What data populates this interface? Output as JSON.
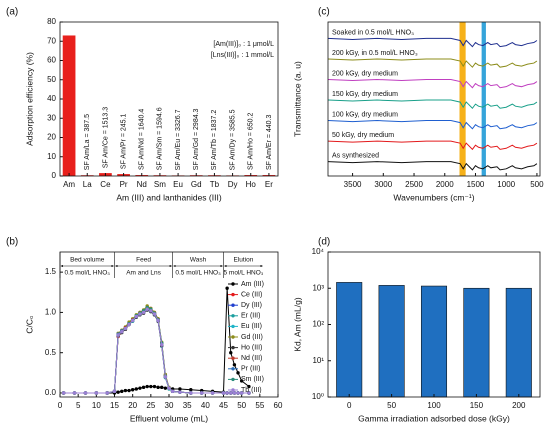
{
  "chart_data": [
    {
      "type": "bar",
      "panel_label": "(a)",
      "y_label": "Adsorption efficiency (%)",
      "x_label": "Am (III) and lanthanides (III)",
      "categories": [
        "Am",
        "La",
        "Ce",
        "Pr",
        "Nd",
        "Sm",
        "Eu",
        "Gd",
        "Tb",
        "Dy",
        "Ho",
        "Er"
      ],
      "values": [
        73,
        0.4,
        1.5,
        1,
        0.5,
        0.4,
        0.3,
        0.4,
        0.4,
        0.3,
        0.5,
        0.5
      ],
      "bar_labels": [
        null,
        "SF Am/La = 387.5",
        "SF Am/Ce = 1513.3",
        "SF Am/Pr = 245.1",
        "SF Am/Nd = 1640.4",
        "SF Am/Sm = 1594.6",
        "SF Am/Eu = 3326.7",
        "SF Am/Gd = 2984.3",
        "SF Am/Tb = 1837.2",
        "SF Am/Dy = 3585.5",
        "SF Am/Ho = 650.2",
        "SF Am/Er = 440.3"
      ],
      "notes": [
        "[Am(III)]₀ : 1 μmol/L",
        "[Lns(III)]₀ : 1 mmol/L"
      ],
      "color": "#e8201c",
      "ylim": [
        0,
        80
      ],
      "yticks": [
        0,
        10,
        20,
        30,
        40,
        50,
        60,
        70,
        80
      ]
    },
    {
      "type": "line",
      "panel_label": "(c)",
      "y_label": "Transmittance (a. u)",
      "x_label": "Wavenumbers (cm⁻¹)",
      "x": [
        3900,
        3500,
        3100,
        2700,
        2300,
        1900,
        1750,
        1700,
        1650,
        1550,
        1500,
        1450,
        1380,
        1300,
        1250,
        1150,
        1100,
        1000,
        900,
        850,
        750,
        650,
        550,
        500
      ],
      "series": [
        {
          "name": "As synthesized",
          "color": "#111111",
          "values": [
            1,
            0.95,
            1,
            0.95,
            1,
            1,
            0.9,
            0.65,
            0.9,
            0.6,
            0.8,
            0.7,
            0.65,
            0.8,
            0.7,
            0.75,
            0.6,
            0.65,
            0.8,
            0.7,
            0.65,
            0.75,
            0.8,
            0.9
          ]
        },
        {
          "name": "50 kGy, dry medium",
          "color": "#e31a1c",
          "values": [
            2,
            1.95,
            2,
            1.95,
            2,
            2,
            1.9,
            1.65,
            1.9,
            1.6,
            1.8,
            1.7,
            1.65,
            1.8,
            1.7,
            1.75,
            1.6,
            1.65,
            1.8,
            1.7,
            1.65,
            1.75,
            1.8,
            1.9
          ]
        },
        {
          "name": "100 kGy, dry medium",
          "color": "#1f5fd0",
          "values": [
            3,
            2.95,
            3,
            2.95,
            3,
            3,
            2.9,
            2.65,
            2.9,
            2.6,
            2.8,
            2.7,
            2.65,
            2.8,
            2.7,
            2.75,
            2.6,
            2.65,
            2.8,
            2.7,
            2.65,
            2.75,
            2.8,
            2.9
          ]
        },
        {
          "name": "150 kGy, dry medium",
          "color": "#1aa08a",
          "values": [
            4,
            3.95,
            4,
            3.95,
            4,
            4,
            3.9,
            3.65,
            3.9,
            3.6,
            3.8,
            3.7,
            3.65,
            3.8,
            3.7,
            3.75,
            3.6,
            3.65,
            3.8,
            3.7,
            3.65,
            3.75,
            3.8,
            3.9
          ]
        },
        {
          "name": "200 kGy, dry medium",
          "color": "#c03fc0",
          "values": [
            5,
            4.95,
            5,
            4.95,
            5,
            5,
            4.9,
            4.65,
            4.9,
            4.6,
            4.8,
            4.7,
            4.65,
            4.8,
            4.7,
            4.75,
            4.6,
            4.65,
            4.8,
            4.7,
            4.65,
            4.75,
            4.8,
            4.9
          ]
        },
        {
          "name": "200 kGy, in 0.5 mol/L HNO₃",
          "color": "#8c8c1a",
          "values": [
            6,
            5.95,
            6,
            5.95,
            6,
            6,
            5.9,
            5.65,
            5.9,
            5.6,
            5.8,
            5.7,
            5.65,
            5.8,
            5.7,
            5.75,
            5.6,
            5.65,
            5.8,
            5.7,
            5.65,
            5.75,
            5.8,
            5.9
          ]
        },
        {
          "name": "Soaked in 0.5 mol/L HNO₃",
          "color": "#1f2f8f",
          "values": [
            7,
            6.95,
            7,
            6.95,
            7,
            7,
            6.9,
            6.65,
            6.9,
            6.6,
            6.8,
            6.7,
            6.65,
            6.8,
            6.7,
            6.75,
            6.6,
            6.65,
            6.8,
            6.7,
            6.65,
            6.75,
            6.8,
            6.9
          ]
        }
      ],
      "bands": [
        {
          "range": [
            1760,
            1660
          ],
          "color": "#f5a800"
        },
        {
          "range": [
            1400,
            1330
          ],
          "color": "#1f9ad6"
        }
      ],
      "series_labels": "inline",
      "xlim": [
        3900,
        450
      ],
      "xticks": [
        3500,
        3000,
        2500,
        2000,
        1500,
        1000,
        500
      ],
      "ylim": [
        0.3,
        7.8
      ]
    },
    {
      "type": "line",
      "panel_label": "(b)",
      "markers": true,
      "y_label": "C/C₀",
      "x_label": "Effluent volume (mL)",
      "x": [
        1,
        4,
        7,
        10,
        13,
        15,
        16,
        17,
        18,
        19,
        20,
        21,
        22,
        23,
        24,
        25,
        26,
        27,
        28,
        29,
        30,
        31,
        33,
        36,
        39,
        42,
        45,
        46,
        47,
        48,
        49,
        50,
        52
      ],
      "series": [
        {
          "name": "Am (III)",
          "color": "#000000",
          "values": [
            0,
            0,
            0,
            0,
            0,
            0,
            0.01,
            0.02,
            0.03,
            0.03,
            0.04,
            0.05,
            0.06,
            0.07,
            0.08,
            0.08,
            0.08,
            0.07,
            0.07,
            0.06,
            0.06,
            0.05,
            0.05,
            0.04,
            0.03,
            0.02,
            0.01,
            1.3,
            0.5,
            0.35,
            0.25,
            0.15,
            0.08
          ]
        },
        {
          "name": "Ce (III)",
          "color": "#e41a1c",
          "values": [
            0,
            0,
            0,
            0,
            0,
            0.02,
            0.7,
            0.75,
            0.79,
            0.85,
            0.9,
            0.96,
            1.0,
            1.02,
            1.07,
            1.05,
            1.0,
            0.92,
            0.62,
            0.22,
            0.06,
            0.02,
            0.01,
            0,
            0,
            0,
            0,
            0,
            0,
            0,
            0,
            0,
            0
          ]
        },
        {
          "name": "Dy (III)",
          "color": "#1f3fcf",
          "values": [
            0,
            0,
            0,
            0,
            0,
            0.02,
            0.72,
            0.76,
            0.8,
            0.86,
            0.9,
            0.95,
            0.98,
            1.0,
            1.04,
            1.02,
            0.98,
            0.9,
            0.6,
            0.2,
            0.06,
            0.02,
            0.01,
            0,
            0,
            0,
            0,
            0,
            0,
            0,
            0,
            0,
            0
          ]
        },
        {
          "name": "Er (III)",
          "color": "#1a9e9e",
          "values": [
            0,
            0,
            0,
            0,
            0,
            0.02,
            0.71,
            0.75,
            0.8,
            0.85,
            0.89,
            0.94,
            0.97,
            1.0,
            1.03,
            1.01,
            0.97,
            0.89,
            0.58,
            0.19,
            0.05,
            0.02,
            0.01,
            0,
            0,
            0,
            0,
            0,
            0,
            0,
            0,
            0,
            0
          ]
        },
        {
          "name": "Eu (III)",
          "color": "#1fb4c8",
          "values": [
            0,
            0,
            0,
            0,
            0,
            0.02,
            0.73,
            0.77,
            0.81,
            0.87,
            0.91,
            0.96,
            0.99,
            1.02,
            1.06,
            1.03,
            0.99,
            0.91,
            0.61,
            0.21,
            0.06,
            0.02,
            0.01,
            0,
            0,
            0,
            0,
            0,
            0,
            0,
            0,
            0,
            0
          ]
        },
        {
          "name": "Gd (III)",
          "color": "#8c8c1a",
          "values": [
            0,
            0,
            0,
            0,
            0,
            0.02,
            0.74,
            0.78,
            0.82,
            0.88,
            0.92,
            0.97,
            1.0,
            1.03,
            1.08,
            1.05,
            1.0,
            0.92,
            0.63,
            0.23,
            0.07,
            0.02,
            0.01,
            0,
            0,
            0,
            0,
            0,
            0,
            0,
            0,
            0,
            0
          ]
        },
        {
          "name": "Ho (III)",
          "color": "#333333",
          "values": [
            0,
            0,
            0,
            0,
            0,
            0.02,
            0.71,
            0.75,
            0.79,
            0.85,
            0.9,
            0.94,
            0.97,
            0.99,
            1.03,
            1.01,
            0.97,
            0.89,
            0.59,
            0.2,
            0.06,
            0.02,
            0.01,
            0,
            0,
            0,
            0,
            0,
            0,
            0,
            0,
            0,
            0
          ]
        },
        {
          "name": "Nd (III)",
          "color": "#c0392b",
          "values": [
            0,
            0,
            0,
            0,
            0,
            0.02,
            0.72,
            0.76,
            0.81,
            0.86,
            0.91,
            0.95,
            0.99,
            1.01,
            1.05,
            1.03,
            0.99,
            0.9,
            0.6,
            0.21,
            0.06,
            0.02,
            0.01,
            0,
            0,
            0,
            0,
            0,
            0,
            0,
            0,
            0,
            0
          ]
        },
        {
          "name": "Pr (III)",
          "color": "#2c6fbb",
          "values": [
            0,
            0,
            0,
            0,
            0,
            0.02,
            0.73,
            0.77,
            0.8,
            0.86,
            0.9,
            0.95,
            0.98,
            1.01,
            1.05,
            1.02,
            0.98,
            0.9,
            0.61,
            0.2,
            0.06,
            0.02,
            0.01,
            0,
            0,
            0,
            0,
            0,
            0,
            0,
            0,
            0,
            0
          ]
        },
        {
          "name": "Sm (III)",
          "color": "#2a8c7a",
          "values": [
            0,
            0,
            0,
            0,
            0,
            0.02,
            0.72,
            0.76,
            0.8,
            0.86,
            0.9,
            0.96,
            0.99,
            1.02,
            1.06,
            1.04,
            0.99,
            0.91,
            0.62,
            0.21,
            0.06,
            0.02,
            0.01,
            0,
            0,
            0,
            0,
            0,
            0,
            0,
            0,
            0,
            0
          ]
        },
        {
          "name": "Tb (III)",
          "color": "#9b7fd4",
          "values": [
            0,
            0,
            0,
            0,
            0,
            0.02,
            0.72,
            0.76,
            0.8,
            0.85,
            0.9,
            0.95,
            0.98,
            1.0,
            1.04,
            1.02,
            0.98,
            0.9,
            0.6,
            0.2,
            0.06,
            0.02,
            0.01,
            0,
            0,
            0,
            0,
            0,
            0,
            0,
            0,
            0,
            0
          ]
        }
      ],
      "stages": [
        {
          "name": "Bed volume",
          "note": "0.5 mol/L HNO₃",
          "range": [
            0,
            15
          ]
        },
        {
          "name": "Feed",
          "note": "Am and Lns",
          "range": [
            15,
            31
          ]
        },
        {
          "name": "Wash",
          "note": "0.5 mol/L HNO₃",
          "range": [
            31,
            45
          ]
        },
        {
          "name": "Elution",
          "note": "5 mol/L HNO₃",
          "range": [
            45,
            56
          ]
        }
      ],
      "legend": "right",
      "xlim": [
        0,
        60
      ],
      "xticks": [
        0,
        5,
        10,
        15,
        20,
        25,
        30,
        35,
        40,
        45,
        50,
        55,
        60
      ],
      "ylim": [
        -0.05,
        1.75
      ],
      "yticks": [
        {
          "value": 0,
          "label": "0.0"
        },
        0.5,
        {
          "value": 1,
          "label": "1.0"
        },
        1.5
      ]
    },
    {
      "type": "bar",
      "panel_label": "(d)",
      "y_label": "Kd, Am (mL/g)",
      "x_label": "Gamma irradiation adsorbed dose (kGy)",
      "categories": [
        "0",
        "50",
        "100",
        "150",
        "200"
      ],
      "values": [
        1450,
        1200,
        1150,
        1000,
        1000
      ],
      "color": "#1f6fc0",
      "log_y": true,
      "ylim": [
        1,
        10000
      ],
      "yticks": [
        {
          "value": 1,
          "label": "10⁰"
        },
        {
          "value": 10,
          "label": "10¹"
        },
        {
          "value": 100,
          "label": "10²"
        },
        {
          "value": 1000,
          "label": "10³"
        },
        {
          "value": 10000,
          "label": "10⁴"
        }
      ]
    }
  ]
}
